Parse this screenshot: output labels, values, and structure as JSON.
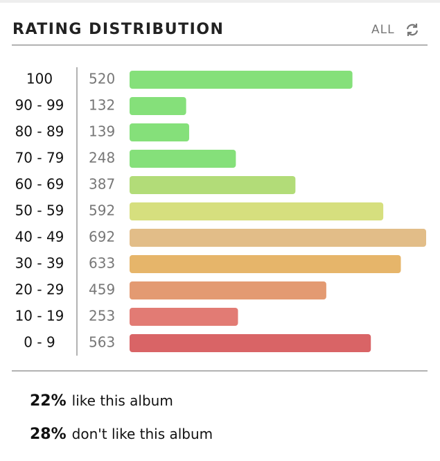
{
  "chart_data": {
    "type": "bar",
    "orientation": "horizontal",
    "title": "RATING DISTRIBUTION",
    "control": "ALL",
    "categories": [
      "100",
      "90 - 99",
      "80 - 89",
      "70 - 79",
      "60 - 69",
      "50 - 59",
      "40 - 49",
      "30 - 39",
      "20 - 29",
      "10 - 19",
      "0 - 9"
    ],
    "values": [
      520,
      132,
      139,
      248,
      387,
      592,
      692,
      633,
      459,
      253,
      563
    ],
    "colors": [
      "#85e07a",
      "#85e07a",
      "#85e07a",
      "#85e07a",
      "#b2dc78",
      "#d6df7e",
      "#e2bd88",
      "#e6b56a",
      "#e39a72",
      "#e27b74",
      "#d96466"
    ]
  },
  "summary": [
    {
      "percent": "22%",
      "text": "like this album"
    },
    {
      "percent": "28%",
      "text": "don't like this album"
    }
  ]
}
